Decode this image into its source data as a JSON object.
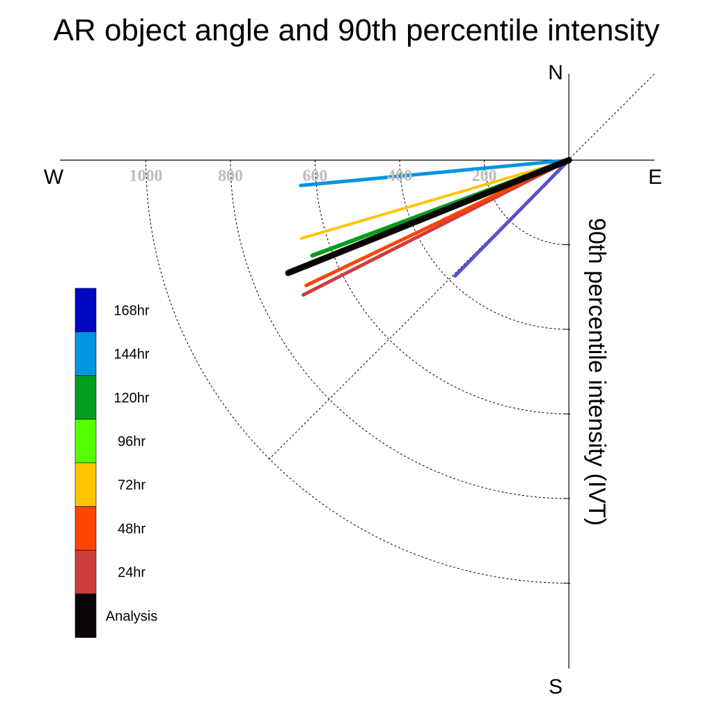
{
  "chart_data": {
    "type": "polar-quadrant-line",
    "title": "AR object angle and 90th percentile intensity",
    "radial_label": "90th percentile intensity (IVT)",
    "compass": {
      "north": "N",
      "south": "S",
      "east": "E",
      "west": "W"
    },
    "radial_ticks": [
      200,
      400,
      600,
      800,
      1000
    ],
    "radial_tick_labels": [
      "200",
      "400",
      "600",
      "800",
      "1000"
    ],
    "angle_unit": "degrees below west (west-southwest quadrant)",
    "series": [
      {
        "name": "Analysis",
        "color": "#0b0508",
        "angle": 21.9,
        "value": 715,
        "width": 9
      },
      {
        "name": "24hr",
        "color": "#cc3e3e",
        "angle": 26.9,
        "value": 704,
        "width": 5
      },
      {
        "name": "48hr",
        "color": "#ff4400",
        "angle": 25.5,
        "value": 688,
        "width": 5
      },
      {
        "name": "96hr",
        "color": "#55ff00",
        "angle": 21.6,
        "value": 653,
        "width": 5
      },
      {
        "name": "120hr",
        "color": "#009e1d",
        "angle": 20.4,
        "value": 647,
        "width": 6
      },
      {
        "name": "72hr",
        "color": "#ffc400",
        "angle": 16.3,
        "value": 659,
        "width": 4
      },
      {
        "name": "144hr",
        "color": "#0095df",
        "angle": 5.4,
        "value": 637,
        "width": 5
      },
      {
        "name": "168hr",
        "color": "#5454cc",
        "angle": 45.5,
        "value": 384,
        "width": 5
      }
    ],
    "legend": [
      {
        "label": "168hr",
        "color": "#0008c4"
      },
      {
        "label": "144hr",
        "color": "#0095df"
      },
      {
        "label": "120hr",
        "color": "#009e1d"
      },
      {
        "label": "96hr",
        "color": "#55ff00"
      },
      {
        "label": "72hr",
        "color": "#ffc400"
      },
      {
        "label": "48hr",
        "color": "#ff4400"
      },
      {
        "label": "24hr",
        "color": "#cc3e3e"
      },
      {
        "label": "Analysis",
        "color": "#0b0508"
      }
    ]
  }
}
